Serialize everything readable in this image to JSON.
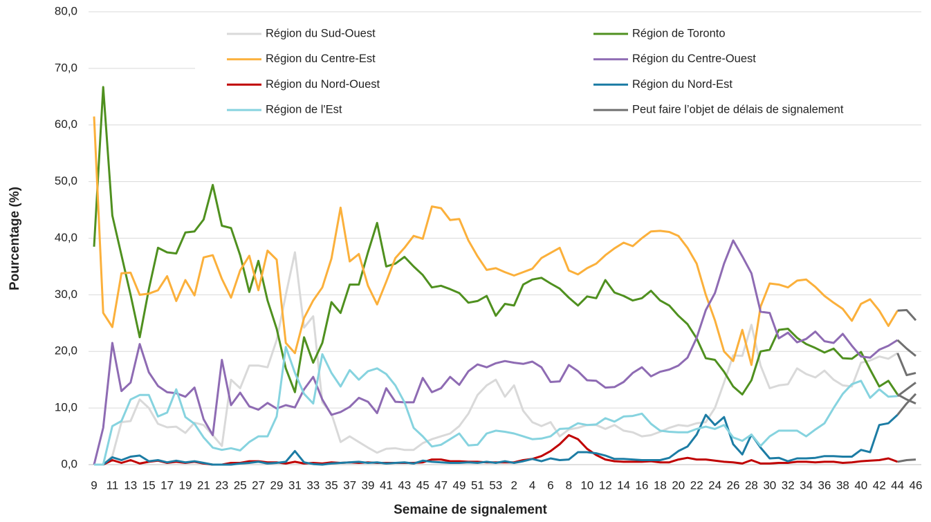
{
  "chart_data": {
    "type": "line",
    "x_label": "Semaine de signalement",
    "y_label": "Pourcentage (%)",
    "categories": [
      "9",
      null,
      "11",
      null,
      "13",
      null,
      "15",
      null,
      "17",
      null,
      "19",
      null,
      "21",
      null,
      "23",
      null,
      "25",
      null,
      "27",
      null,
      "29",
      null,
      "31",
      null,
      "33",
      null,
      "35",
      null,
      "37",
      null,
      "39",
      null,
      "41",
      null,
      "43",
      null,
      "45",
      null,
      "47",
      null,
      "49",
      null,
      "51",
      null,
      "53",
      null,
      "2",
      null,
      "4",
      null,
      "6",
      null,
      "8",
      null,
      "10",
      null,
      "12",
      null,
      "14",
      null,
      "16",
      null,
      "18",
      null,
      "20",
      null,
      "22",
      null,
      "24",
      null,
      "26",
      null,
      "28",
      null,
      "30",
      null,
      "32",
      null,
      "34",
      null,
      "36",
      null,
      "38",
      null,
      "40",
      null,
      "42",
      null,
      "44",
      null,
      "46"
    ],
    "ylim": [
      0,
      80
    ],
    "yticks": [
      {
        "value": 0,
        "label": "0,0"
      },
      {
        "value": 10,
        "label": "10,0"
      },
      {
        "value": 20,
        "label": "20,0"
      },
      {
        "value": 30,
        "label": "30,0"
      },
      {
        "value": 40,
        "label": "40,0"
      },
      {
        "value": 50,
        "label": "50,0"
      },
      {
        "value": 60,
        "label": "60,0"
      },
      {
        "value": 70,
        "label": "70,0"
      },
      {
        "value": 80,
        "label": "80,0"
      }
    ],
    "grid": true,
    "series": [
      {
        "name": "Région du Sud-Ouest",
        "color": "#d9d9d9",
        "values": [
          0,
          0,
          1.5,
          7.5,
          7.7,
          11.5,
          10,
          7.2,
          6.6,
          6.7,
          5.6,
          7.4,
          7,
          5.2,
          3.3,
          15,
          13.5,
          17.5,
          17.5,
          17.2,
          22,
          30,
          37.5,
          24.2,
          26.2,
          11,
          9,
          4,
          5,
          4,
          3,
          2.1,
          2.8,
          2.9,
          2.6,
          2.6,
          3.8,
          4.5,
          5,
          5.5,
          6.8,
          9,
          12.3,
          14,
          15,
          12,
          14,
          9.5,
          7.5,
          6.8,
          7.5,
          5,
          6.2,
          6.5,
          7,
          7,
          6.3,
          7,
          6,
          5.7,
          5,
          5.2,
          5.8,
          6.5,
          7,
          6.8,
          7.3,
          7.5,
          10,
          14.5,
          19.3,
          19.2,
          24.7,
          17.5,
          13.5,
          14,
          14.2,
          17,
          16,
          15.4,
          16.6,
          15,
          14,
          13.8,
          18,
          18.4,
          19.1,
          18.7,
          19.7,
          15.8,
          16.2
        ]
      },
      {
        "name": "Région de Toronto",
        "color": "#4f901f",
        "values": [
          38.5,
          66.7,
          44,
          37,
          30,
          22.5,
          31,
          38.3,
          37.5,
          37.3,
          41,
          41.2,
          43.3,
          49.4,
          42.2,
          41.8,
          37,
          30.5,
          36,
          29,
          24,
          17,
          12.8,
          22.5,
          18,
          21.5,
          28.7,
          26.8,
          31.8,
          31.8,
          37.5,
          42.7,
          35,
          35.5,
          36.7,
          35,
          33.5,
          31.3,
          31.6,
          31,
          30.3,
          28.6,
          28.9,
          29.8,
          26.3,
          28.4,
          28.1,
          31.8,
          32.7,
          33,
          32,
          31.1,
          29.5,
          28.1,
          29.7,
          29.4,
          32.6,
          30.4,
          29.8,
          29,
          29.4,
          30.7,
          29,
          28.1,
          26.3,
          24.8,
          22.3,
          18.8,
          18.5,
          16.4,
          13.8,
          12.4,
          14.9,
          20,
          20.3,
          23.8,
          24,
          22.4,
          21.3,
          20.6,
          19.8,
          20.5,
          18.8,
          18.7,
          19.9,
          16.8,
          13.8,
          14.8,
          12.4,
          11.5,
          10.8
        ]
      },
      {
        "name": "Région du Centre-Est",
        "color": "#fbb03b",
        "values": [
          61.5,
          26.8,
          24.3,
          33.8,
          33.9,
          30,
          30.2,
          30.8,
          33.3,
          28.9,
          32.6,
          29.9,
          36.6,
          37,
          32.8,
          29.5,
          34.3,
          36.9,
          30.8,
          37.8,
          36.2,
          21.5,
          19.7,
          25.9,
          29,
          31.3,
          36.4,
          45.4,
          35.9,
          37.2,
          31.6,
          28.3,
          32.3,
          36.5,
          38.3,
          40.4,
          39.9,
          45.6,
          45.3,
          43.2,
          43.4,
          39.6,
          36.8,
          34.4,
          34.7,
          34,
          33.4,
          34,
          34.6,
          36.5,
          37.4,
          38.3,
          34.3,
          33.6,
          34.7,
          35.5,
          37,
          38.2,
          39.2,
          38.6,
          40,
          41.2,
          41.3,
          41.1,
          40.4,
          38.3,
          35.5,
          30,
          25.5,
          20,
          18.3,
          23.8,
          17.6,
          27.9,
          32,
          31.8,
          31.3,
          32.5,
          32.7,
          31.4,
          29.8,
          28.6,
          27.5,
          25.4,
          28.4,
          29.2,
          27.2,
          24.5,
          27.2,
          27.3,
          25.5
        ]
      },
      {
        "name": "Région du Centre-Ouest",
        "color": "#8e6bb3",
        "values": [
          0,
          6.5,
          21.5,
          13,
          14.5,
          21.3,
          16.3,
          13.9,
          12.8,
          12.6,
          12,
          13.6,
          8,
          5.2,
          18.5,
          10.5,
          12.7,
          10.3,
          9.7,
          10.9,
          9.9,
          10.5,
          10.1,
          13.3,
          15.5,
          11.5,
          8.8,
          9.3,
          10.2,
          11.8,
          11.1,
          9.1,
          13.5,
          11.1,
          11,
          11,
          15.3,
          12.8,
          13.5,
          15.5,
          14.1,
          16.5,
          17.7,
          17.2,
          17.9,
          18.3,
          18,
          17.8,
          18.2,
          17.2,
          14.6,
          14.7,
          17.6,
          16.5,
          14.9,
          14.8,
          13.6,
          13.7,
          14.6,
          16.2,
          17.2,
          15.6,
          16.4,
          16.8,
          17.5,
          18.9,
          22.4,
          27.3,
          30.3,
          35.5,
          39.6,
          36.8,
          33.8,
          27,
          26.8,
          22.3,
          23.3,
          21.6,
          22.2,
          23.5,
          21.8,
          21.5,
          23.1,
          21,
          19.1,
          18.9,
          20.3,
          21,
          22,
          20.5,
          19.2
        ]
      },
      {
        "name": "Région du Nord-Ouest",
        "color": "#c00000",
        "values": [
          0,
          0,
          0.8,
          0.3,
          0.8,
          0.2,
          0.5,
          0.7,
          0.3,
          0.5,
          0.3,
          0.5,
          0.2,
          0,
          0,
          0.3,
          0.3,
          0.6,
          0.6,
          0.4,
          0.4,
          0.2,
          0.5,
          0.2,
          0.3,
          0.2,
          0.4,
          0.3,
          0.4,
          0.3,
          0.4,
          0.3,
          0.3,
          0.3,
          0.3,
          0.3,
          0.4,
          0.9,
          0.9,
          0.6,
          0.6,
          0.5,
          0.5,
          0.4,
          0.4,
          0.4,
          0.4,
          0.8,
          1,
          1.5,
          2.4,
          3.6,
          5.2,
          4.5,
          2.8,
          1.7,
          0.9,
          0.6,
          0.5,
          0.5,
          0.5,
          0.6,
          0.4,
          0.4,
          0.9,
          1.2,
          0.9,
          0.9,
          0.7,
          0.5,
          0.4,
          0.2,
          0.8,
          0.2,
          0.2,
          0.3,
          0.3,
          0.5,
          0.5,
          0.4,
          0.5,
          0.5,
          0.3,
          0.4,
          0.6,
          0.7,
          0.8,
          1.1,
          0.5,
          0.8,
          0.9
        ]
      },
      {
        "name": "Région du Nord-Est",
        "color": "#1c7ca4",
        "values": [
          0,
          0,
          1.3,
          0.8,
          1.4,
          1.6,
          0.6,
          0.8,
          0.4,
          0.7,
          0.4,
          0.6,
          0.3,
          0,
          0,
          0,
          0.2,
          0.3,
          0.5,
          0.2,
          0.3,
          0.5,
          2.4,
          0.4,
          0.1,
          0,
          0.2,
          0.3,
          0.4,
          0.5,
          0.3,
          0.4,
          0.2,
          0.3,
          0.4,
          0.2,
          0.7,
          0.5,
          0.4,
          0.3,
          0.3,
          0.4,
          0.3,
          0.5,
          0.3,
          0.6,
          0.3,
          0.6,
          1,
          0.6,
          1.1,
          0.8,
          0.9,
          2.2,
          2.2,
          2,
          1.6,
          1,
          1,
          0.9,
          0.8,
          0.8,
          0.8,
          1.2,
          2.4,
          3.2,
          5.3,
          8.8,
          7,
          8.4,
          3.6,
          1.8,
          5.3,
          3,
          1.1,
          1.2,
          0.6,
          1.1,
          1.1,
          1.2,
          1.5,
          1.5,
          1.4,
          1.4,
          2.6,
          2.2,
          7,
          7.3,
          8.8,
          10.8,
          12.5
        ]
      },
      {
        "name": "Région de l'Est",
        "color": "#86d3df",
        "values": [
          0,
          0,
          6.8,
          7.7,
          11.5,
          12.3,
          12.3,
          8.5,
          9.2,
          13.3,
          8.4,
          7.2,
          4.8,
          3,
          2.6,
          2.9,
          2.5,
          4,
          5,
          5,
          8.5,
          20.8,
          16.2,
          12.5,
          10.8,
          19.5,
          16.2,
          13.8,
          16.7,
          15,
          16.5,
          17,
          16,
          14,
          11,
          6.5,
          5,
          3.2,
          3.5,
          4.5,
          5.5,
          3.4,
          3.5,
          5.5,
          6,
          5.8,
          5.5,
          5,
          4.5,
          4.6,
          5,
          6.3,
          6.4,
          7.3,
          7,
          7.1,
          8.2,
          7.6,
          8.5,
          8.6,
          9,
          7.2,
          6,
          5.8,
          5.7,
          5.7,
          6.3,
          6.7,
          6.3,
          7,
          4.8,
          4.2,
          5.3,
          3.3,
          5,
          6,
          6,
          6,
          5,
          6.2,
          7.3,
          10,
          12.5,
          14.2,
          14.8,
          11.8,
          13.3,
          12,
          12.1,
          13.3,
          14.5
        ]
      }
    ],
    "delay": {
      "name": "Peut faire l’objet de délais de signalement",
      "color": "#707070",
      "last_points": 2
    }
  }
}
